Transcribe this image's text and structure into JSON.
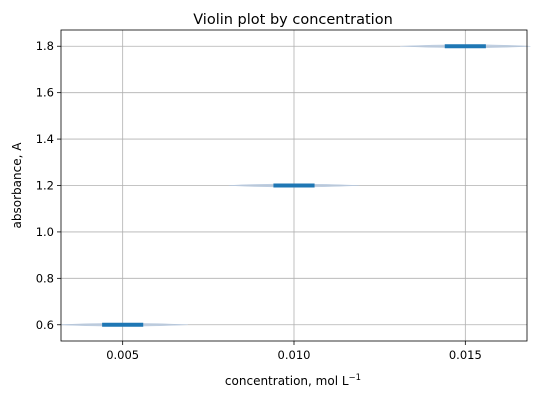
{
  "chart_data": {
    "type": "violin",
    "title": "Violin plot by concentration",
    "xlabel_main": "concentration, mol L",
    "xlabel_sup": "−1",
    "ylabel": "absorbance, A",
    "x_ticks": [
      "0.005",
      "0.010",
      "0.015"
    ],
    "y_ticks": [
      "0.6",
      "0.8",
      "1.0",
      "1.2",
      "1.4",
      "1.6",
      "1.8"
    ],
    "x_tick_values": [
      0.005,
      0.01,
      0.015
    ],
    "y_tick_values": [
      0.6,
      0.8,
      1.0,
      1.2,
      1.4,
      1.6,
      1.8
    ],
    "xlim": [
      0.0032,
      0.0168
    ],
    "ylim": [
      0.53,
      1.87
    ],
    "grid": true,
    "violins": [
      {
        "x": 0.005,
        "y": 0.6
      },
      {
        "x": 0.01,
        "y": 1.2
      },
      {
        "x": 0.015,
        "y": 1.8
      }
    ],
    "colors": {
      "median": "#1f77b4",
      "violin_fill": "#b8c9de",
      "grid": "#b0b0b0"
    }
  }
}
